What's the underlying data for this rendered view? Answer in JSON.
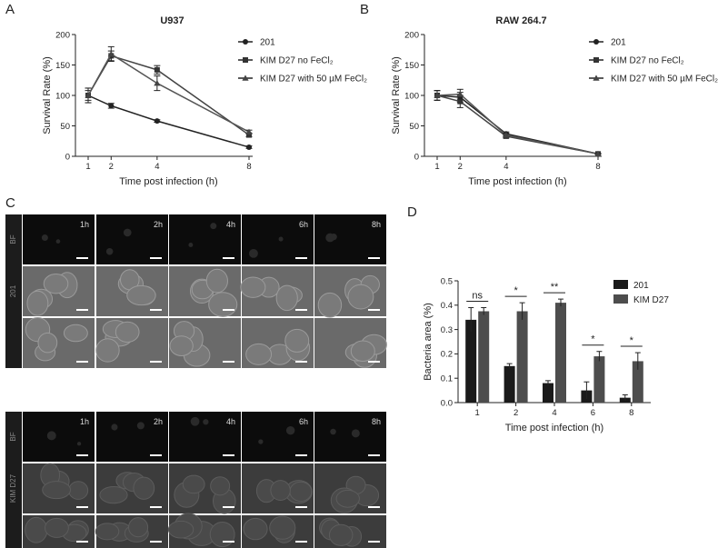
{
  "panels": {
    "a": "A",
    "b": "B",
    "c": "C",
    "d": "D"
  },
  "chart_data": [
    {
      "id": "A",
      "type": "line",
      "title": "U937",
      "xlabel": "Time post infection (h)",
      "ylabel": "Survival Rate (%)",
      "x": [
        1,
        2,
        4,
        8
      ],
      "xticks": [
        "1",
        "2",
        "4",
        "8"
      ],
      "ylim": [
        0,
        200
      ],
      "yticks": [
        0,
        50,
        100,
        150,
        200
      ],
      "legend_position": "top-right",
      "series": [
        {
          "name": "201",
          "marker": "circle",
          "values": [
            100,
            83,
            58,
            15
          ],
          "errors": [
            8,
            4,
            2,
            2
          ]
        },
        {
          "name": "KIM D27 no FeCl₂",
          "marker": "square",
          "values": [
            100,
            165,
            142,
            35
          ],
          "errors": [
            12,
            8,
            7,
            3
          ]
        },
        {
          "name": "KIM D27 with 50 µM FeCl₂",
          "marker": "triangle",
          "values": [
            100,
            168,
            120,
            40
          ],
          "errors": [
            12,
            12,
            12,
            3
          ]
        }
      ]
    },
    {
      "id": "B",
      "type": "line",
      "title": "RAW 264.7",
      "xlabel": "Time post infection (h)",
      "ylabel": "Survival Rate (%)",
      "x": [
        1,
        2,
        4,
        8
      ],
      "xticks": [
        "1",
        "2",
        "4",
        "8"
      ],
      "ylim": [
        0,
        200
      ],
      "yticks": [
        0,
        50,
        100,
        150,
        200
      ],
      "legend_position": "top-right",
      "series": [
        {
          "name": "201",
          "marker": "circle",
          "values": [
            100,
            97,
            37,
            4
          ],
          "errors": [
            8,
            8,
            3,
            1
          ]
        },
        {
          "name": "KIM D27 no FeCl₂",
          "marker": "square",
          "values": [
            100,
            90,
            33,
            4
          ],
          "errors": [
            8,
            10,
            3,
            1
          ]
        },
        {
          "name": "KIM D27 with 50 µM FeCl₂",
          "marker": "triangle",
          "values": [
            100,
            102,
            35,
            4
          ],
          "errors": [
            8,
            8,
            3,
            1
          ]
        }
      ]
    },
    {
      "id": "D",
      "type": "bar",
      "xlabel": "Time post infection (h)",
      "ylabel": "Bacteria area (%)",
      "categories": [
        "1",
        "2",
        "4",
        "6",
        "8"
      ],
      "ylim": [
        0,
        0.5
      ],
      "yticks": [
        "0.0",
        "0.1",
        "0.2",
        "0.3",
        "0.4",
        "0.5"
      ],
      "legend_position": "top-right",
      "series": [
        {
          "name": "201",
          "color": "#1a1a1a",
          "values": [
            0.34,
            0.15,
            0.08,
            0.05,
            0.02
          ],
          "errors": [
            0.05,
            0.01,
            0.01,
            0.035,
            0.012
          ]
        },
        {
          "name": "KIM D27",
          "color": "#4d4d4d",
          "values": [
            0.375,
            0.375,
            0.41,
            0.19,
            0.17
          ],
          "errors": [
            0.015,
            0.035,
            0.015,
            0.02,
            0.035
          ]
        }
      ],
      "significance": [
        "ns",
        "*",
        "**",
        "*",
        "*"
      ]
    }
  ],
  "micrographs": {
    "columns": [
      "1h",
      "2h",
      "4h",
      "6h",
      "8h"
    ],
    "groups": [
      {
        "label": "201",
        "rows": [
          "BF",
          "201",
          ""
        ]
      },
      {
        "label": "KIM D27",
        "rows": [
          "BF",
          "KIM D27",
          ""
        ]
      }
    ]
  }
}
